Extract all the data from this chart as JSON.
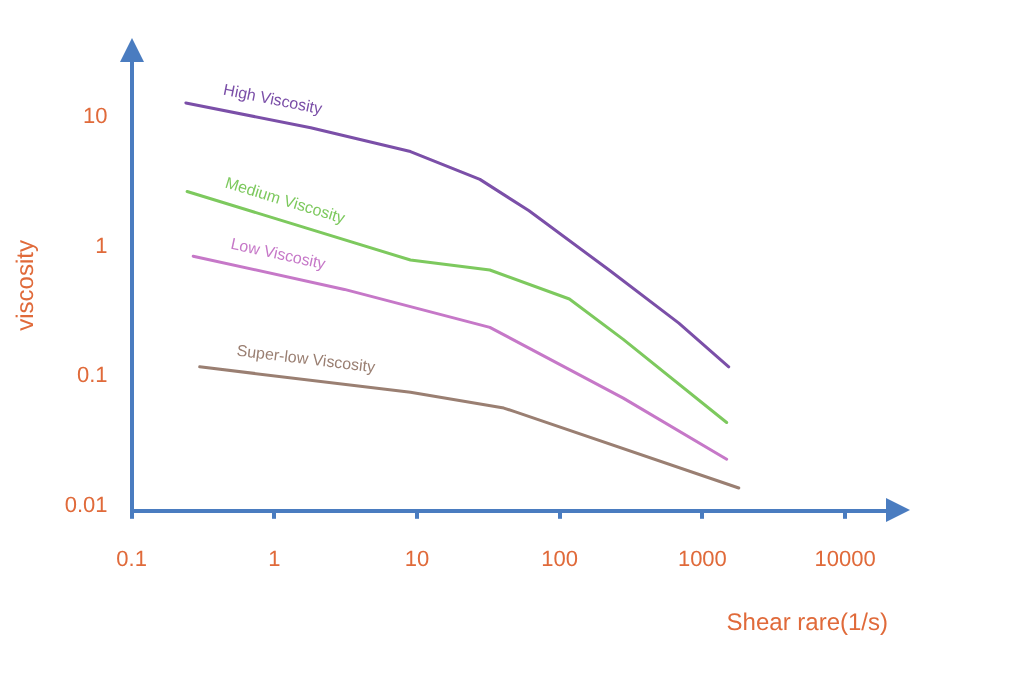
{
  "chart_data": {
    "type": "line",
    "xlabel": "Shear rare(1/s)",
    "ylabel": "viscosity",
    "log": "xy",
    "grid": false,
    "legend": false,
    "marker": "none",
    "line_style": "solid",
    "xlim": [
      0.1,
      20000
    ],
    "xticks": [
      0.1,
      1,
      10,
      100,
      1000,
      10000
    ],
    "ylim": [
      0.01,
      30
    ],
    "yticks": [
      0.01,
      0.1,
      1,
      10
    ],
    "series": [
      {
        "name": "High Viscosity",
        "color": "#7b4fa8",
        "x": [
          0.24,
          1.8,
          9,
          27.6,
          61,
          222,
          684,
          1530
        ],
        "values": [
          14,
          9,
          5.9,
          3.6,
          2.06,
          0.72,
          0.28,
          0.129
        ]
      },
      {
        "name": "Medium Viscosity",
        "color": "#7dc95e",
        "x": [
          0.245,
          9,
          32.4,
          117,
          279,
          1480
        ],
        "values": [
          2.9,
          0.86,
          0.72,
          0.43,
          0.21,
          0.048
        ]
      },
      {
        "name": "Low Viscosity",
        "color": "#c678c8",
        "x": [
          0.27,
          3.1,
          32.4,
          279,
          1480
        ],
        "values": [
          0.92,
          0.51,
          0.26,
          0.074,
          0.025
        ]
      },
      {
        "name": "Super-low Viscosity",
        "color": "#9a7f72",
        "x": [
          0.3,
          9,
          40.6,
          49,
          1800
        ],
        "values": [
          0.129,
          0.082,
          0.062,
          0.058,
          0.015
        ]
      }
    ]
  }
}
